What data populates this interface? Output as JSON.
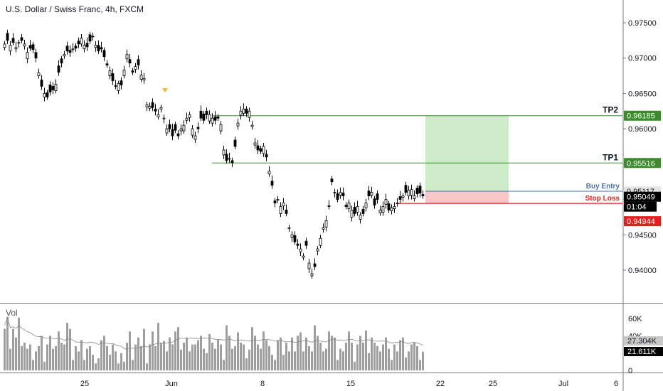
{
  "header": {
    "title": "U.S. Dollar / Swiss Franc, 4h, FXCM"
  },
  "colors": {
    "up": "#ffffff",
    "down": "#000000",
    "tp": "#3c8a2e",
    "stop": "#e61e1e",
    "entry": "#4a6fa5",
    "profit_zone": "#cdebc9",
    "loss_zone": "#f7c6c9",
    "volume": "#9e9e9e",
    "volume_ma": "#888888",
    "signal": "#f5b731"
  },
  "price_axis": {
    "ylim": [
      0.9367,
      0.9797
    ],
    "ticks": [
      "0.97500",
      "0.97000",
      "0.96500",
      "0.96000",
      "0.95500",
      "0.95000",
      "0.94500",
      "0.94000"
    ],
    "tick_values": [
      0.975,
      0.97,
      0.965,
      0.96,
      0.955,
      0.95,
      0.945,
      0.94
    ]
  },
  "levels": {
    "tp2": {
      "label": "TP2",
      "price": 0.96185,
      "price_text": "0.96185"
    },
    "tp1": {
      "label": "TP1",
      "price": 0.95516,
      "price_text": "0.95516"
    },
    "entry": {
      "label": "Buy Entry",
      "price": 0.95117,
      "price_text": "0.95117"
    },
    "stop": {
      "label": "Stop Loss",
      "price": 0.94944,
      "price_text": "0.94944"
    },
    "current": {
      "price": 0.95049,
      "price_text": "0.95049",
      "countdown": "01:04"
    }
  },
  "volume_panel": {
    "label": "Vol",
    "ylim": [
      0,
      72000
    ],
    "ticks": [
      "60K",
      "40K",
      "20K",
      "0"
    ],
    "tick_values": [
      60000,
      40000,
      20000,
      0
    ],
    "ma_value_text": "27.304K",
    "last_value_text": "21.611K"
  },
  "time_axis": {
    "labels": [
      "25",
      "Jun",
      "8",
      "15",
      "22",
      "25",
      "Jul",
      "6"
    ]
  },
  "chart_data": {
    "type": "candlestick",
    "title": "U.S. Dollar / Swiss Franc, 4h, FXCM",
    "ylim": [
      0.9367,
      0.9797
    ],
    "bar_count": 148,
    "close": [
      0.972,
      0.9725,
      0.9718,
      0.9722,
      0.9715,
      0.9722,
      0.9725,
      0.972,
      0.9708,
      0.9714,
      0.9712,
      0.97,
      0.9679,
      0.966,
      0.965,
      0.9645,
      0.9652,
      0.9655,
      0.9663,
      0.968,
      0.9693,
      0.9705,
      0.971,
      0.9708,
      0.9713,
      0.9714,
      0.972,
      0.9728,
      0.9718,
      0.9716,
      0.9724,
      0.973,
      0.9718,
      0.971,
      0.9713,
      0.9702,
      0.969,
      0.9682,
      0.9668,
      0.966,
      0.9664,
      0.9662,
      0.9683,
      0.9705,
      0.9693,
      0.968,
      0.9688,
      0.969,
      0.9676,
      0.9671,
      0.9634,
      0.9632,
      0.963,
      0.9625,
      0.962,
      0.963,
      0.9615,
      0.96,
      0.96,
      0.959,
      0.9598,
      0.959,
      0.96,
      0.9605,
      0.9615,
      0.962,
      0.96,
      0.959,
      0.96,
      0.9615,
      0.9612,
      0.962,
      0.962,
      0.9615,
      0.9612,
      0.9615,
      0.9606,
      0.957,
      0.9555,
      0.9558,
      0.9552,
      0.9575,
      0.9608,
      0.9625,
      0.9628,
      0.9622,
      0.9625,
      0.9605,
      0.958,
      0.957,
      0.9568,
      0.9575,
      0.956,
      0.954,
      0.952,
      0.9495,
      0.95,
      0.949,
      0.9495,
      0.948,
      0.946,
      0.945,
      0.944,
      0.9435,
      0.943,
      0.942,
      0.9435,
      0.941,
      0.9395,
      0.9405,
      0.943,
      0.9445,
      0.946,
      0.947,
      0.949,
      0.9525,
      0.951,
      0.95,
      0.951,
      0.9505,
      0.949,
      0.9495,
      0.9485,
      0.948,
      0.949,
      0.9478,
      0.948,
      0.9495,
      0.9505,
      0.951,
      0.9492,
      0.95,
      0.9485,
      0.949,
      0.95,
      0.9485,
      0.9488,
      0.949,
      0.9495,
      0.95,
      0.9505,
      0.951,
      0.9513,
      0.9514,
      0.9505,
      0.9508,
      0.9509,
      0.9505
    ],
    "open_offsets": [
      -0.0005,
      0.001,
      -0.0008,
      0.0006,
      -0.0002,
      -0.0001,
      0.0004,
      -0.0003,
      -0.0009,
      0.0004,
      0.0007,
      0.0008,
      -0.0004,
      0.0009,
      -0.0005,
      0.0006,
      0.001,
      0.0005,
      -0.0009,
      0.0009,
      0.0006,
      -0.0002,
      0.0007,
      0.0003,
      -0.0001,
      0.0003,
      0.0004,
      -0.0008,
      -0.0005,
      0.0005,
      0.0009,
      0.0001,
      -0.0003,
      0.0008,
      0.0002,
      0.0009,
      0.0002,
      -0.0007,
      0.001,
      0.0001,
      -0.001,
      0.0006,
      -0.0008,
      -0.0006,
      0.0005,
      0.0002,
      -0.0004,
      0.0008,
      -0.0006,
      -0.0002,
      -0.0003,
      -0.0003,
      0.0007,
      0.0003,
      -0.0003,
      -0.0002,
      -0.0001,
      -0.0006,
      0.0006,
      0.0009,
      0.0008,
      0.0003,
      -0.0003,
      -0.0008,
      -0.0003,
      -0.0004,
      -0.0009,
      -0.0005,
      0.0002,
      0.001,
      0.0009,
      0.0005,
      -0.0009,
      -0.0007,
      0.0005,
      0.0002,
      -0.0009,
      -0.0007,
      0.0009,
      -0.0001,
      0.0003,
      0.0009,
      -0.0004,
      -0.0006,
      -0.0006,
      0.0006,
      -0.0009,
      -0.0002,
      -0.0003,
      0.0006,
      0.0004,
      -0.001,
      0.0004,
      -0.0004,
      0.0006,
      0.0003,
      -0.0001,
      -0.001,
      -0.0004,
      0.0005,
      -0.0001,
      -0.0004,
      0.0009,
      0.0002,
      -0.0004,
      -0.0002,
      0.0006,
      -0.0008,
      -0.0003,
      0.0004,
      -0.0003,
      -0.001,
      -0.0002,
      -0.0009,
      0.0001,
      0.0004,
      -0.0001,
      0.0008,
      -0.0004,
      0.0004,
      0.0002,
      -0.0008,
      -0.001,
      0.0009,
      -0.0008,
      -0.0006,
      0.0006,
      -0.0007,
      0.0007,
      -0.0004,
      0.0009,
      0.0008,
      -0.0004,
      -0.0008,
      -0.0007,
      0.0009,
      -0.0004,
      -0.0003,
      -0.0001,
      0.0004,
      -0.0002,
      0.001,
      -0.0008,
      -0.0008,
      -0.0004,
      0.0008,
      0.001,
      0.0002
    ],
    "volume": [
      48000,
      62000,
      25000,
      48000,
      38000,
      61000,
      28000,
      32000,
      25000,
      30000,
      12000,
      22000,
      28000,
      40000,
      10000,
      30000,
      40000,
      25000,
      28000,
      45000,
      32000,
      30000,
      55000,
      48000,
      12000,
      28000,
      22000,
      35000,
      12000,
      25000,
      28000,
      18000,
      8000,
      14000,
      35000,
      40000,
      28000,
      18000,
      30000,
      22000,
      8000,
      20000,
      10000,
      32000,
      45000,
      12000,
      30000,
      38000,
      28000,
      48000,
      8000,
      30000,
      45000,
      28000,
      55000,
      32000,
      34000,
      22000,
      38000,
      30000,
      45000,
      50000,
      24000,
      32000,
      38000,
      22000,
      30000,
      30000,
      35000,
      40000,
      25000,
      20000,
      42000,
      32000,
      25000,
      36000,
      30000,
      12000,
      52000,
      40000,
      25000,
      28000,
      44000,
      32000,
      30000,
      14000,
      24000,
      50000,
      40000,
      30000,
      25000,
      45000,
      35000,
      28000,
      18000,
      12000,
      35000,
      38000,
      18000,
      32000,
      22000,
      38000,
      22000,
      40000,
      44000,
      22000,
      38000,
      28000,
      22000,
      52000,
      40000,
      32000,
      22000,
      25000,
      45000,
      40000,
      38000,
      12000,
      25000,
      22000,
      32000,
      45000,
      32000,
      10000,
      30000,
      40000,
      32000,
      46000,
      20000,
      38000,
      32000,
      28000,
      22000,
      30000,
      38000,
      25000,
      12000,
      30000,
      22000,
      35000,
      38000,
      15000,
      22000,
      30000,
      32000,
      28000,
      12000,
      21611
    ],
    "volume_ma_value": 27304
  }
}
